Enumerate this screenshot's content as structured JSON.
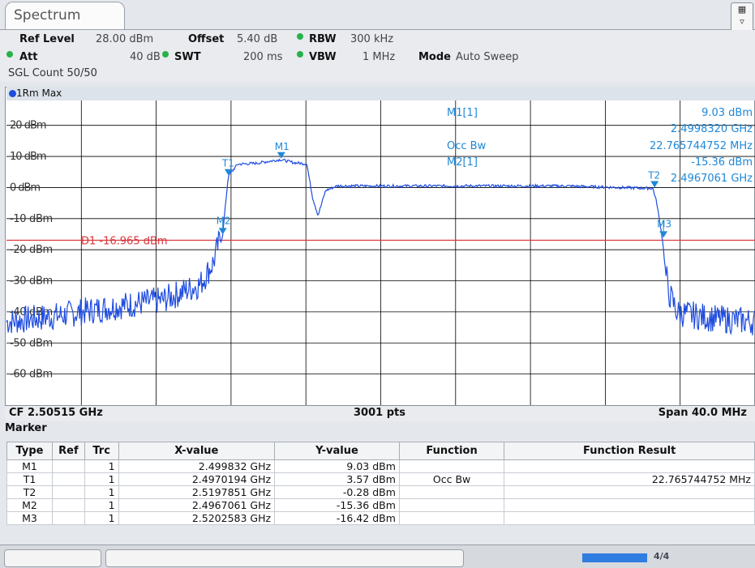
{
  "tab": {
    "label": "Spectrum"
  },
  "settings": {
    "ref_level_label": "Ref Level",
    "ref_level_value": "28.00 dBm",
    "offset_label": "Offset",
    "offset_value": "5.40 dB",
    "rbw_label": "RBW",
    "rbw_value": "300 kHz",
    "att_label": "Att",
    "att_value": "40 dB",
    "swt_label": "SWT",
    "swt_value": "200 ms",
    "vbw_label": "VBW",
    "vbw_value": "1 MHz",
    "mode_label": "Mode",
    "mode_value": "Auto Sweep",
    "sgl_count": "SGL Count 50/50"
  },
  "trace": {
    "label": "1Rm Max",
    "color": "#1f4de0"
  },
  "display_line": {
    "label": "D1 -16.965 dBm",
    "color": "#d9363b"
  },
  "marker_info": {
    "m1_label": "M1[1]",
    "m1_level": "9.03 dBm",
    "m1_freq": "2.4998320 GHz",
    "occ_label": "Occ Bw",
    "occ_value": "22.765744752 MHz",
    "m2_label": "M2[1]",
    "m2_level": "-15.36 dBm",
    "m2_freq": "2.4967061 GHz"
  },
  "chart_data": {
    "type": "line",
    "y_tick_labels": [
      "20 dBm",
      "10 dBm",
      "0 dBm",
      "-10 dBm",
      "-20 dBm",
      "-30 dBm",
      "-40 dBm",
      "-50 dBm",
      "-60 dBm"
    ],
    "ylim": [
      -70,
      28
    ],
    "xlim_ghz": [
      2.48515,
      2.52515
    ],
    "grid": true,
    "series": [
      {
        "name": "1Rm Max",
        "x_ghz": [
          2.48515,
          2.488,
          2.491,
          2.4935,
          2.4955,
          2.4962,
          2.4967,
          2.497,
          2.4975,
          2.4985,
          2.4998,
          2.5005,
          2.5012,
          2.5015,
          2.5018,
          2.5022,
          2.5028,
          2.505,
          2.51,
          2.515,
          2.5197,
          2.5199,
          2.5202,
          2.5205,
          2.521,
          2.523,
          2.52515
        ],
        "y_dbm": [
          -45,
          -43,
          -40,
          -38,
          -33,
          -26,
          -15.4,
          3.6,
          7.5,
          7.8,
          9.0,
          8.0,
          7.6,
          -3,
          -9,
          -1,
          0.5,
          0.5,
          0.5,
          0.5,
          -0.3,
          -5,
          -16.4,
          -35,
          -42,
          -44,
          -45
        ]
      }
    ],
    "markers": [
      {
        "label": "M1",
        "x_ghz": 2.499832,
        "y_dbm": 9.03
      },
      {
        "label": "T1",
        "x_ghz": 2.4970194,
        "y_dbm": 3.57
      },
      {
        "label": "T2",
        "x_ghz": 2.5197851,
        "y_dbm": -0.28
      },
      {
        "label": "M2",
        "x_ghz": 2.4967061,
        "y_dbm": -15.36
      },
      {
        "label": "M3",
        "x_ghz": 2.5202583,
        "y_dbm": -16.42
      }
    ]
  },
  "footer": {
    "cf": "CF 2.50515 GHz",
    "points": "3001 pts",
    "span": "Span 40.0 MHz"
  },
  "marker_table": {
    "title": "Marker",
    "headers": [
      "Type",
      "Ref",
      "Trc",
      "X-value",
      "Y-value",
      "Function",
      "Function Result"
    ],
    "rows": [
      [
        "M1",
        "",
        "1",
        "2.499832 GHz",
        "9.03 dBm",
        "",
        ""
      ],
      [
        "T1",
        "",
        "1",
        "2.4970194 GHz",
        "3.57 dBm",
        "Occ Bw",
        "22.765744752 MHz"
      ],
      [
        "T2",
        "",
        "1",
        "2.5197851 GHz",
        "-0.28 dBm",
        "",
        ""
      ],
      [
        "M2",
        "",
        "1",
        "2.4967061 GHz",
        "-15.36 dBm",
        "",
        ""
      ],
      [
        "M3",
        "",
        "1",
        "2.5202583 GHz",
        "-16.42 dBm",
        "",
        ""
      ]
    ]
  },
  "status": {
    "progress_label": "4/4",
    "progress_fraction": 1.0
  },
  "colors": {
    "trace": "#1f4de0",
    "marker": "#1e88d8",
    "marker_text": "#1e88d8",
    "grid": "#000000"
  }
}
